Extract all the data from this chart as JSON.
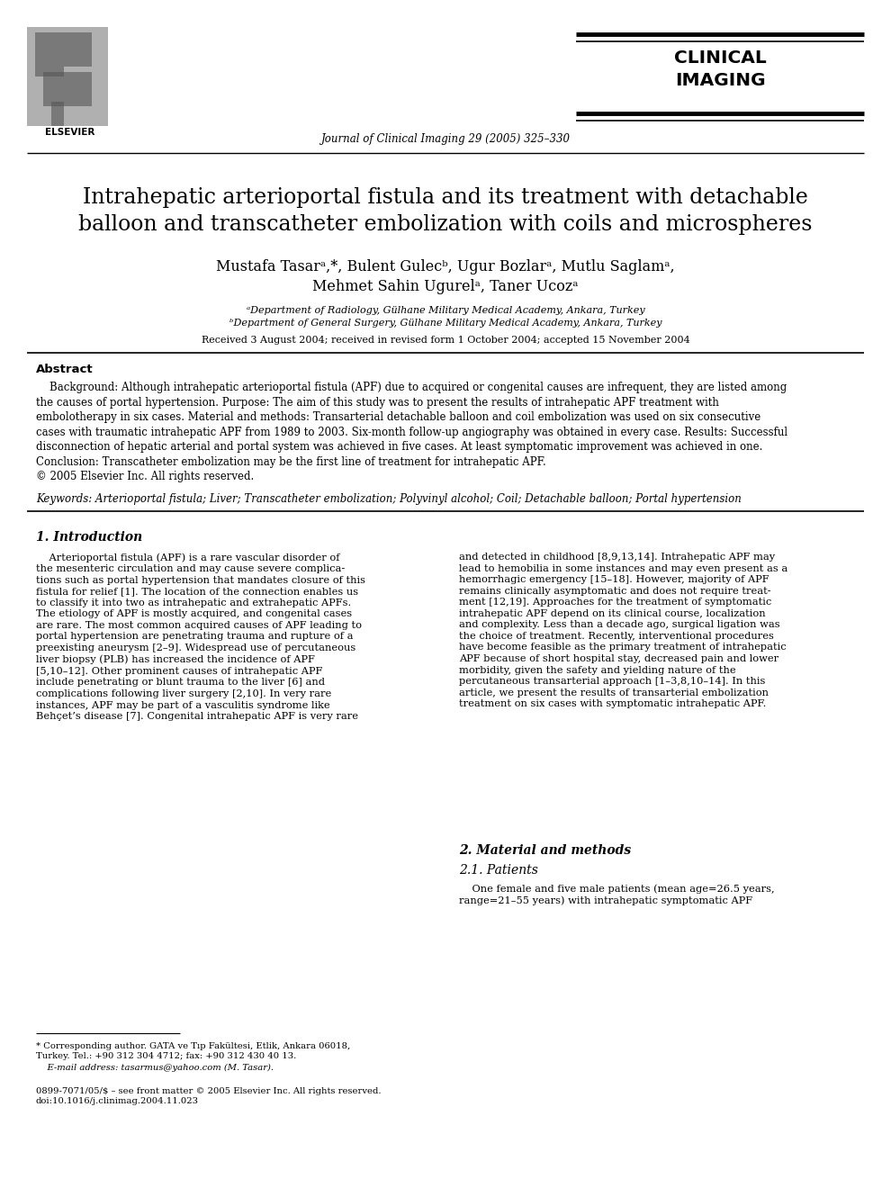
{
  "bg_color": "#ffffff",
  "page_width": 9.9,
  "page_height": 13.2,
  "dpi": 100,
  "header": {
    "journal_text": "Journal of Clinical Imaging 29 (2005) 325–330",
    "clinical_imaging_line1": "CLINICAL",
    "clinical_imaging_line2": "IMAGING",
    "journal_fontsize": 8.5,
    "ci_fontsize": 14.5
  },
  "title_line1": "Intrahepatic arterioportal fistula and its treatment with detachable",
  "title_line2": "balloon and transcatheter embolization with coils and microspheres",
  "title_fontsize": 17,
  "authors_line1": "Mustafa Tasarᵃ,*, Bulent Gulecᵇ, Ugur Bozlarᵃ, Mutlu Saglamᵃ,",
  "authors_line2": "Mehmet Sahin Ugurelᵃ, Taner Ucozᵃ",
  "authors_fontsize": 11.5,
  "affil1": "ᵃDepartment of Radiology, Gülhane Military Medical Academy, Ankara, Turkey",
  "affil2": "ᵇDepartment of General Surgery, Gülhane Military Medical Academy, Ankara, Turkey",
  "affil_fontsize": 8,
  "received": "Received 3 August 2004; received in revised form 1 October 2004; accepted 15 November 2004",
  "received_fontsize": 8,
  "abstract_title": "Abstract",
  "abstract_title_fontsize": 9.5,
  "abstract_bg_label": "Background:",
  "abstract_purpose_label": "Purpose:",
  "abstract_mm_label": "Material and methods:",
  "abstract_results_label": "Results:",
  "abstract_conclusion_label": "Conclusion:",
  "abstract_body": "    Background: Although intrahepatic arterioportal fistula (APF) due to acquired or congenital causes are infrequent, they are listed among\nthe causes of portal hypertension. Purpose: The aim of this study was to present the results of intrahepatic APF treatment with\nembolotherapy in six cases. Material and methods: Transarterial detachable balloon and coil embolization was used on six consecutive\ncases with traumatic intrahepatic APF from 1989 to 2003. Six-month follow-up angiography was obtained in every case. Results: Successful\ndisconnection of hepatic arterial and portal system was achieved in five cases. At least symptomatic improvement was achieved in one.\nConclusion: Transcatheter embolization may be the first line of treatment for intrahepatic APF.\n© 2005 Elsevier Inc. All rights reserved.",
  "abstract_fontsize": 8.5,
  "keywords": "Keywords: Arterioportal fistula; Liver; Transcatheter embolization; Polyvinyl alcohol; Coil; Detachable balloon; Portal hypertension",
  "keywords_fontsize": 8.5,
  "section1_title": "1. Introduction",
  "section1_title_fontsize": 10,
  "section1_col1": "    Arterioportal fistula (APF) is a rare vascular disorder of\nthe mesenteric circulation and may cause severe complica-\ntions such as portal hypertension that mandates closure of this\nfistula for relief [1]. The location of the connection enables us\nto classify it into two as intrahepatic and extrahepatic APFs.\nThe etiology of APF is mostly acquired, and congenital cases\nare rare. The most common acquired causes of APF leading to\nportal hypertension are penetrating trauma and rupture of a\npreexisting aneurysm [2–9]. Widespread use of percutaneous\nliver biopsy (PLB) has increased the incidence of APF\n[5,10–12]. Other prominent causes of intrahepatic APF\ninclude penetrating or blunt trauma to the liver [6] and\ncomplications following liver surgery [2,10]. In very rare\ninstances, APF may be part of a vasculitis syndrome like\nBehçet’s disease [7]. Congenital intrahepatic APF is very rare",
  "section1_col2": "and detected in childhood [8,9,13,14]. Intrahepatic APF may\nlead to hemobilia in some instances and may even present as a\nhemorrhagic emergency [15–18]. However, majority of APF\nremains clinically asymptomatic and does not require treat-\nment [12,19]. Approaches for the treatment of symptomatic\nintrahepatic APF depend on its clinical course, localization\nand complexity. Less than a decade ago, surgical ligation was\nthe choice of treatment. Recently, interventional procedures\nhave become feasible as the primary treatment of intrahepatic\nAPF because of short hospital stay, decreased pain and lower\nmorbidity, given the safety and yielding nature of the\npercutaneous transarterial approach [1–3,8,10–14]. In this\narticle, we present the results of transarterial embolization\ntreatment on six cases with symptomatic intrahepatic APF.",
  "section2_title": "2. Material and methods",
  "section2_title_fontsize": 10,
  "section21_title": "2.1. Patients",
  "section21_title_fontsize": 10,
  "section21_text": "    One female and five male patients (mean age=26.5 years,\nrange=21–55 years) with intrahepatic symptomatic APF",
  "body_fontsize": 8.2,
  "footnote1": "* Corresponding author. GATA ve Tıp Fakültesi, Etlik, Ankara 06018,\nTurkey. Tel.: +90 312 304 4712; fax: +90 312 430 40 13.",
  "footnote2": "    E-mail address: tasarmus@yahoo.com (M. Tasar).",
  "footnote3": "0899-7071/05/$ – see front matter © 2005 Elsevier Inc. All rights reserved.\ndoi:10.1016/j.clinimag.2004.11.023",
  "footnote_fontsize": 7.2
}
